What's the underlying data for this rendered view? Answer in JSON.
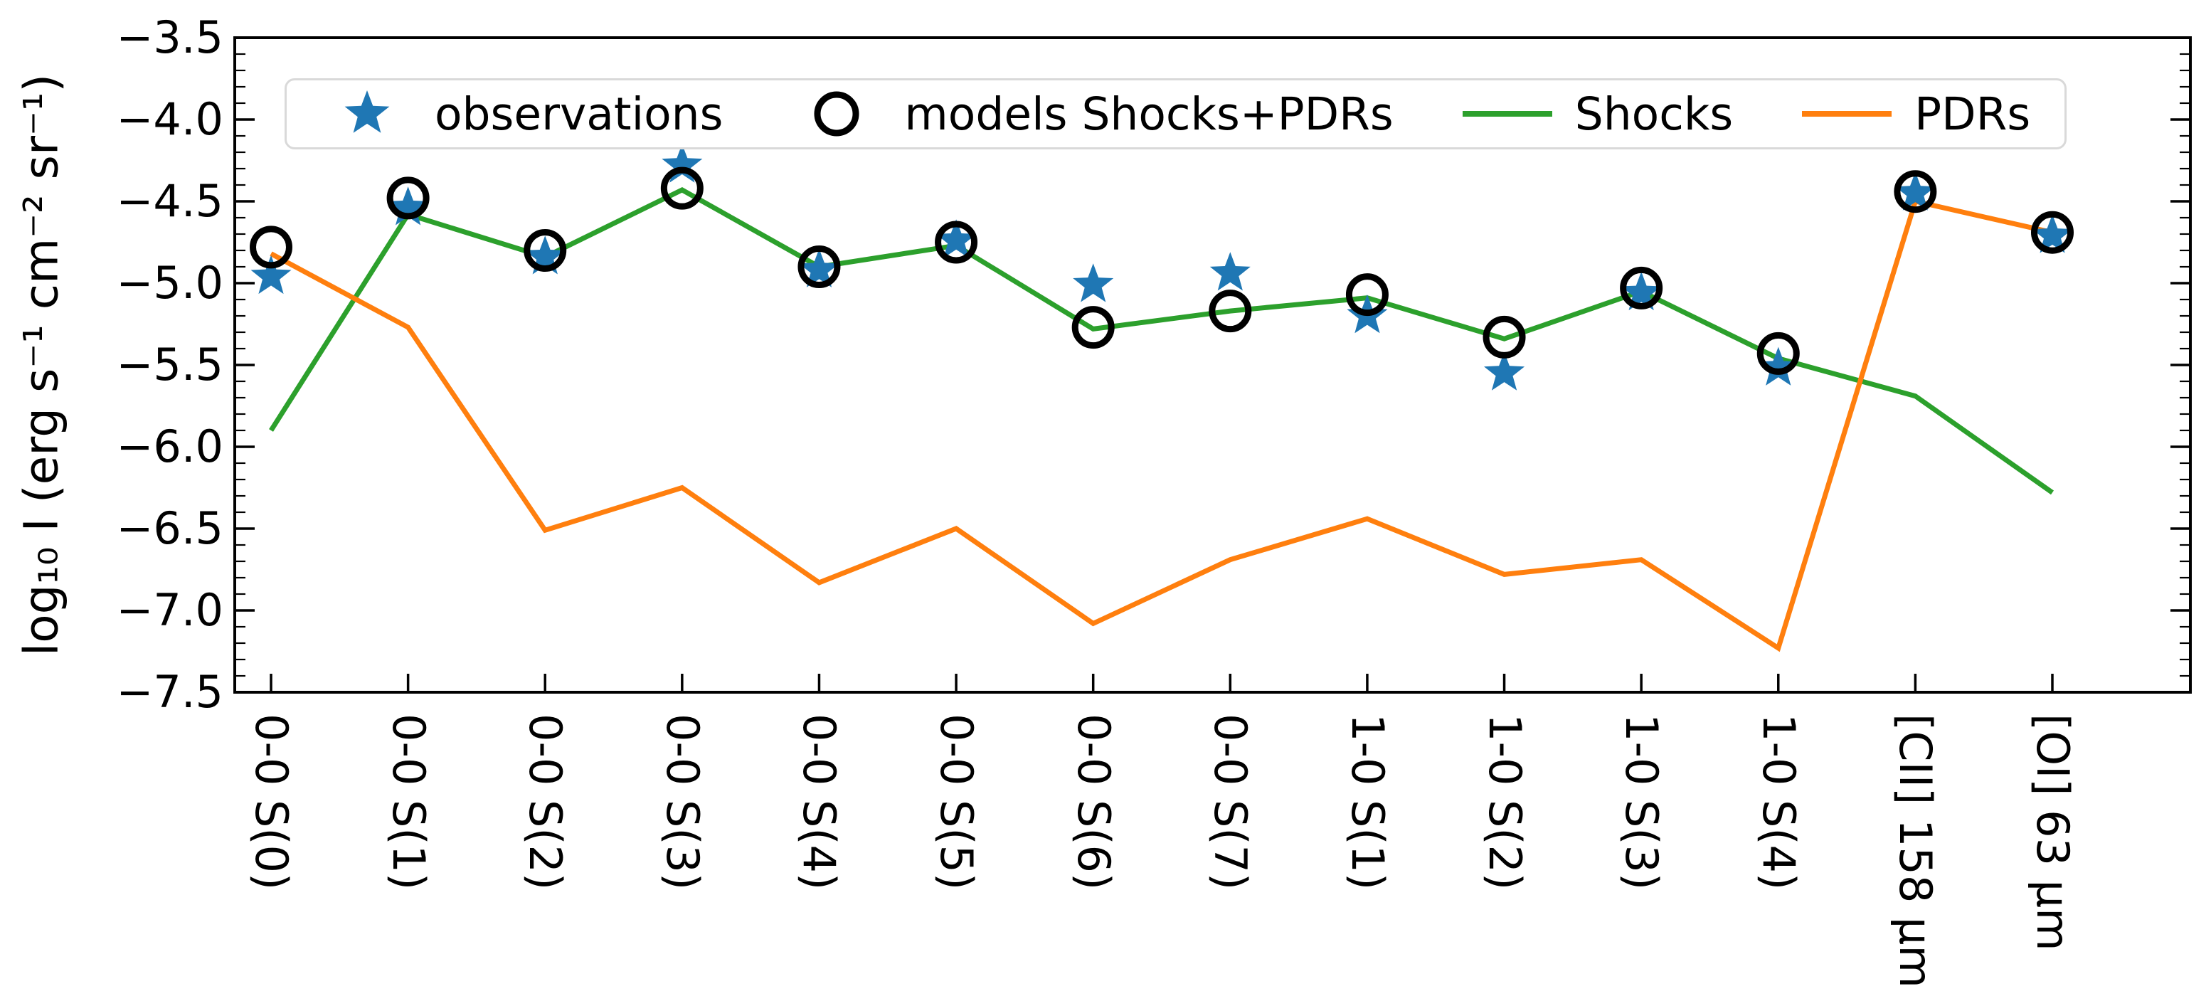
{
  "figure": {
    "background": "#ffffff"
  },
  "axes": {
    "ylabel": "log₁₀ I (erg s⁻¹ cm⁻² sr⁻¹)",
    "ylim": [
      -7.5,
      -3.5
    ],
    "ytick_step": 0.5,
    "yminor_step": 0.1,
    "grid": false
  },
  "legend": {
    "position": "upper left",
    "items": [
      {
        "label": "observations",
        "marker": "star",
        "color": "#1f77b4"
      },
      {
        "label": "models Shocks+PDRs",
        "marker": "open-circle",
        "color": "#000000"
      },
      {
        "label": "Shocks",
        "marker": "line",
        "color": "#2ca02c"
      },
      {
        "label": "PDRs",
        "marker": "line",
        "color": "#ff7f0e"
      }
    ]
  },
  "chart_data": {
    "type": "line",
    "title": "",
    "xlabel": "",
    "ylabel": "log10 I (erg s-1 cm-2 sr-1)",
    "ylim": [
      -7.5,
      -3.5
    ],
    "legend_position": "top-left-inside",
    "categories": [
      "0-0 S(0)",
      "0-0 S(1)",
      "0-0 S(2)",
      "0-0 S(3)",
      "0-0 S(4)",
      "0-0 S(5)",
      "0-0 S(6)",
      "0-0 S(7)",
      "1-0 S(1)",
      "1-0 S(2)",
      "1-0 S(3)",
      "1-0 S(4)",
      "[CII] 158 μm",
      "[OI] 63 μm"
    ],
    "series": [
      {
        "name": "observations",
        "style": "scatter",
        "marker": "star",
        "color": "#1f77b4",
        "values": [
          -4.96,
          -4.54,
          -4.84,
          -4.28,
          -4.92,
          -4.74,
          -5.01,
          -4.94,
          -5.2,
          -5.55,
          -5.06,
          -5.52,
          -4.45,
          -4.71
        ]
      },
      {
        "name": "models Shocks+PDRs",
        "style": "scatter",
        "marker": "open-circle",
        "color": "#000000",
        "values": [
          -4.78,
          -4.48,
          -4.8,
          -4.42,
          -4.9,
          -4.75,
          -5.27,
          -5.17,
          -5.07,
          -5.33,
          -5.03,
          -5.43,
          -4.44,
          -4.69
        ]
      },
      {
        "name": "Shocks",
        "style": "line",
        "color": "#2ca02c",
        "values": [
          -5.9,
          -4.58,
          -4.84,
          -4.43,
          -4.9,
          -4.77,
          -5.28,
          -5.17,
          -5.09,
          -5.34,
          -5.05,
          -5.46,
          -5.69,
          -6.28
        ]
      },
      {
        "name": "PDRs",
        "style": "line",
        "color": "#ff7f0e",
        "values": [
          -4.82,
          -5.27,
          -6.51,
          -6.25,
          -6.83,
          -6.5,
          -7.08,
          -6.69,
          -6.44,
          -6.78,
          -6.69,
          -7.23,
          -4.5,
          -4.69
        ]
      }
    ]
  }
}
